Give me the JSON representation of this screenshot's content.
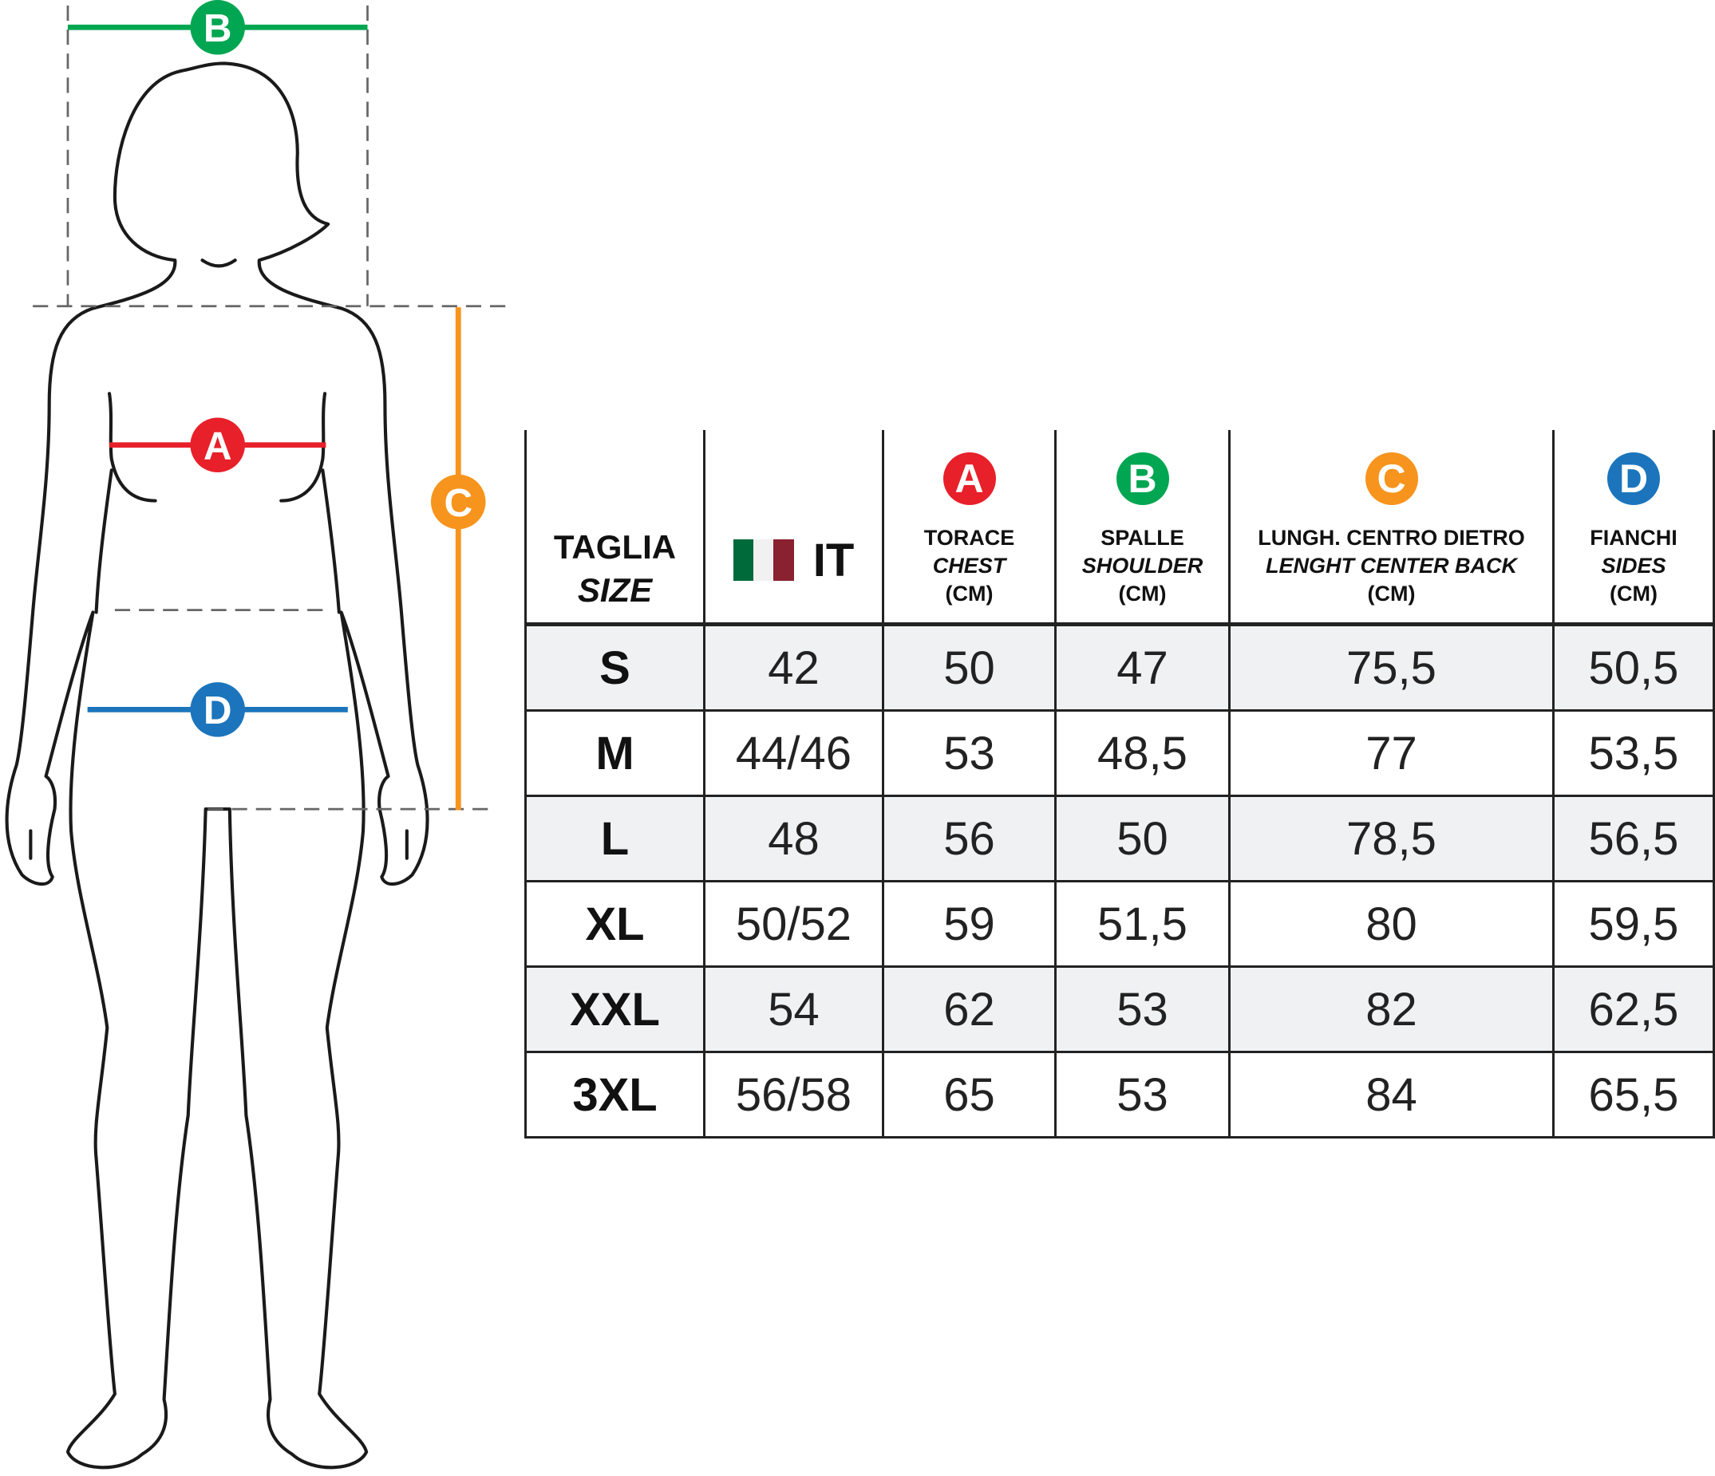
{
  "colors": {
    "A": "#e8202a",
    "B": "#00a651",
    "C": "#f7941d",
    "D": "#1c75bc",
    "flag_green": "#006a3a",
    "flag_white": "#f1f1f1",
    "flag_red": "#8a2131"
  },
  "figure_labels": {
    "A": "A",
    "B": "B",
    "C": "C",
    "D": "D"
  },
  "header": {
    "size": {
      "line1": "TAGLIA",
      "line2": "SIZE"
    },
    "it": {
      "label": "IT",
      "icon": "italy-flag-icon"
    },
    "chest": {
      "badge": "A",
      "line1": "TORACE",
      "line2": "CHEST",
      "line3": "(CM)"
    },
    "shoulder": {
      "badge": "B",
      "line1": "SPALLE",
      "line2": "SHOULDER",
      "line3": "(CM)"
    },
    "length": {
      "badge": "C",
      "line1": "LUNGH. CENTRO DIETRO",
      "line2": "LENGHT CENTER BACK",
      "line3": "(CM)"
    },
    "sides": {
      "badge": "D",
      "line1": "FIANCHI",
      "line2": "SIDES",
      "line3": "(CM)"
    }
  },
  "rows": [
    {
      "size": "S",
      "it": "42",
      "chest": "50",
      "shoulder": "47",
      "length": "75,5",
      "sides": "50,5"
    },
    {
      "size": "M",
      "it": "44/46",
      "chest": "53",
      "shoulder": "48,5",
      "length": "77",
      "sides": "53,5"
    },
    {
      "size": "L",
      "it": "48",
      "chest": "56",
      "shoulder": "50",
      "length": "78,5",
      "sides": "56,5"
    },
    {
      "size": "XL",
      "it": "50/52",
      "chest": "59",
      "shoulder": "51,5",
      "length": "80",
      "sides": "59,5"
    },
    {
      "size": "XXL",
      "it": "54",
      "chest": "62",
      "shoulder": "53",
      "length": "82",
      "sides": "62,5"
    },
    {
      "size": "3XL",
      "it": "56/58",
      "chest": "65",
      "shoulder": "53",
      "length": "84",
      "sides": "65,5"
    }
  ]
}
